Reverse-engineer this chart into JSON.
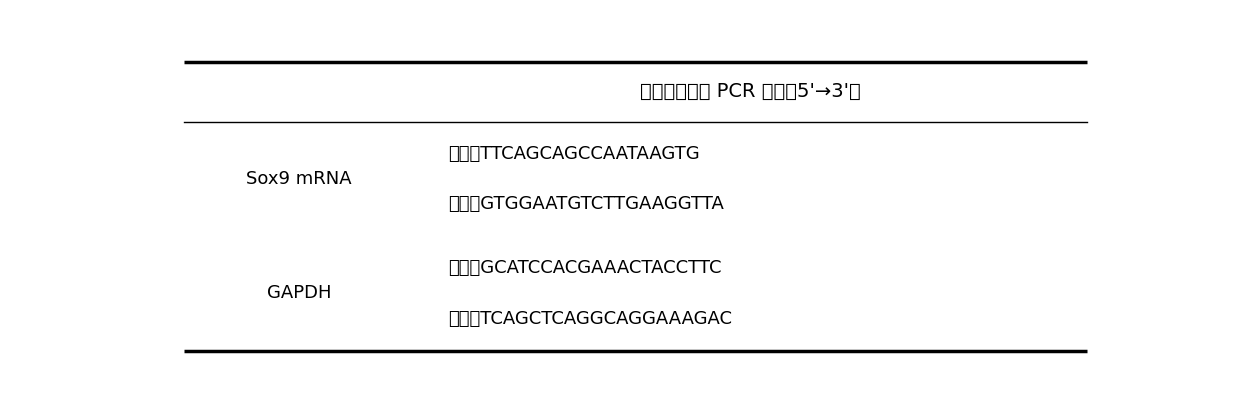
{
  "title": "实时荧光定量 PCR 引物（5'→3'）",
  "rows": [
    {
      "gene": "Sox9 mRNA",
      "entries": [
        {
          "direction": "上游：",
          "sequence": "TTCAGCAGCCAATAAGTG"
        },
        {
          "direction": "下游：",
          "sequence": "GTGGAATGTCTTGAAGGTTA"
        }
      ]
    },
    {
      "gene": "GAPDH",
      "entries": [
        {
          "direction": "上游：",
          "sequence": "GCATCCACGAAACTACCTTC"
        },
        {
          "direction": "下游：",
          "sequence": "TCAGCTCAGGCAGGAAAGAC"
        }
      ]
    }
  ],
  "bg_color": "#ffffff",
  "text_color": "#000000",
  "border_color": "#000000",
  "figsize": [
    12.4,
    4.08
  ],
  "dpi": 100
}
